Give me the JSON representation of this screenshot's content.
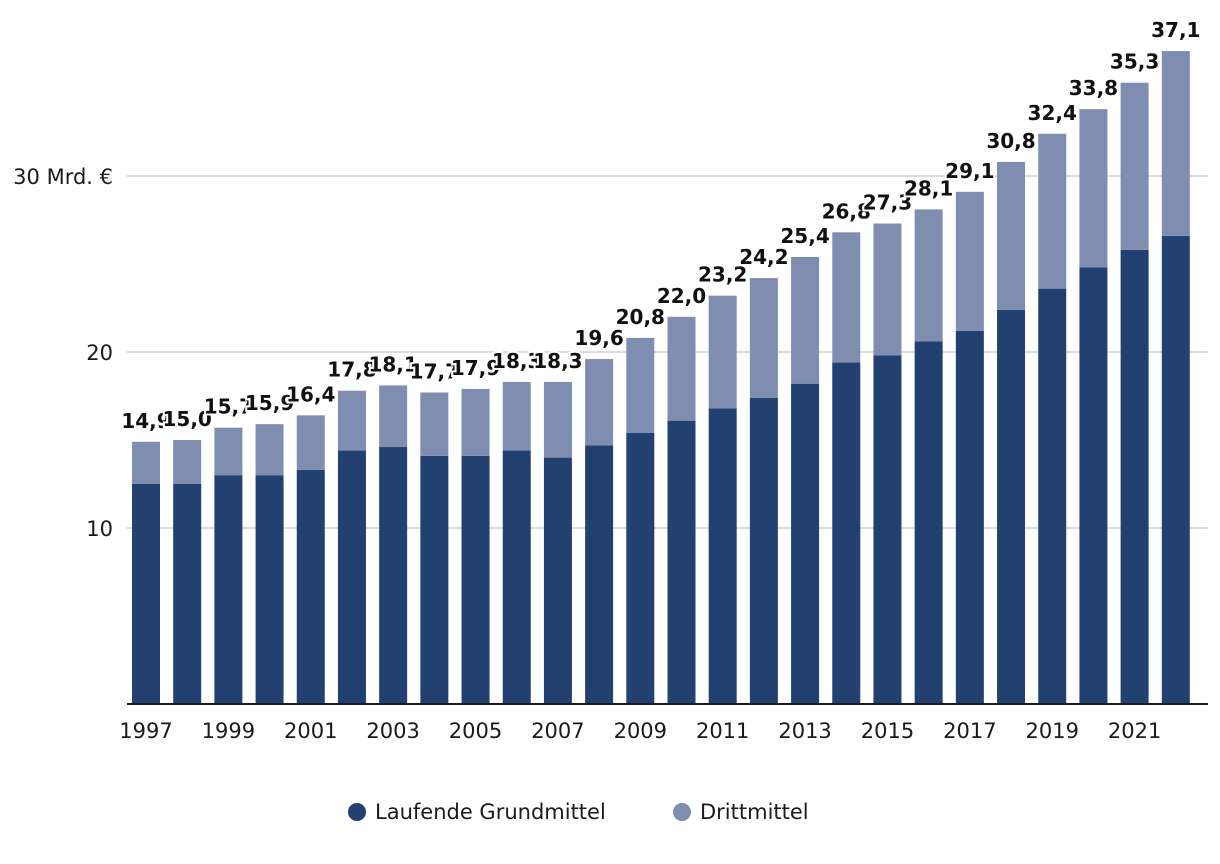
{
  "chart_data": {
    "type": "bar",
    "stacked": true,
    "title": "",
    "xlabel": "",
    "ylabel": "",
    "categories": [
      "1997",
      "1998",
      "1999",
      "2000",
      "2001",
      "2002",
      "2003",
      "2004",
      "2005",
      "2006",
      "2007",
      "2008",
      "2009",
      "2010",
      "2011",
      "2012",
      "2013",
      "2014",
      "2015",
      "2016",
      "2017",
      "2018",
      "2019",
      "2020",
      "2021",
      "2022"
    ],
    "tick_labels": [
      "1997",
      "1999",
      "2001",
      "2003",
      "2005",
      "2007",
      "2009",
      "2011",
      "2013",
      "2015",
      "2017",
      "2019",
      "2021"
    ],
    "series": [
      {
        "name": "Laufende Grundmittel",
        "color": "#224070",
        "values": [
          12.5,
          12.5,
          13.0,
          13.0,
          13.3,
          14.4,
          14.6,
          14.1,
          14.1,
          14.4,
          14.0,
          14.7,
          15.4,
          16.1,
          16.8,
          17.4,
          18.2,
          19.4,
          19.8,
          20.6,
          21.2,
          22.4,
          23.6,
          24.8,
          25.8,
          26.6
        ]
      },
      {
        "name": "Drittmittel",
        "color": "#7f8db0",
        "values": [
          2.4,
          2.5,
          2.7,
          2.9,
          3.1,
          3.4,
          3.5,
          3.6,
          3.8,
          3.9,
          4.3,
          4.9,
          5.4,
          5.9,
          6.4,
          6.8,
          7.2,
          7.4,
          7.5,
          7.5,
          7.9,
          8.4,
          8.8,
          9.0,
          9.5,
          10.5
        ]
      }
    ],
    "totals": [
      "14,9",
      "15,0",
      "15,7",
      "15,9",
      "16,4",
      "17,8",
      "18,1",
      "17,7",
      "17,9",
      "18,3",
      "18,3",
      "19,6",
      "20,8",
      "22,0",
      "23,2",
      "24,2",
      "25,4",
      "26,8",
      "27,3",
      "28,1",
      "29,1",
      "30,8",
      "32,4",
      "33,8",
      "35,3",
      "37,1"
    ],
    "y_ticks": [
      10,
      20,
      30
    ],
    "y_tick_labels": [
      "10",
      "20",
      "30 Mrd. €"
    ],
    "ylim": [
      0,
      37.5
    ],
    "grid": true,
    "legend_position": "bottom-center"
  },
  "legend": [
    {
      "label": "Laufende Grundmittel",
      "color": "#224070"
    },
    {
      "label": "Drittmittel",
      "color": "#7f8db0"
    }
  ]
}
